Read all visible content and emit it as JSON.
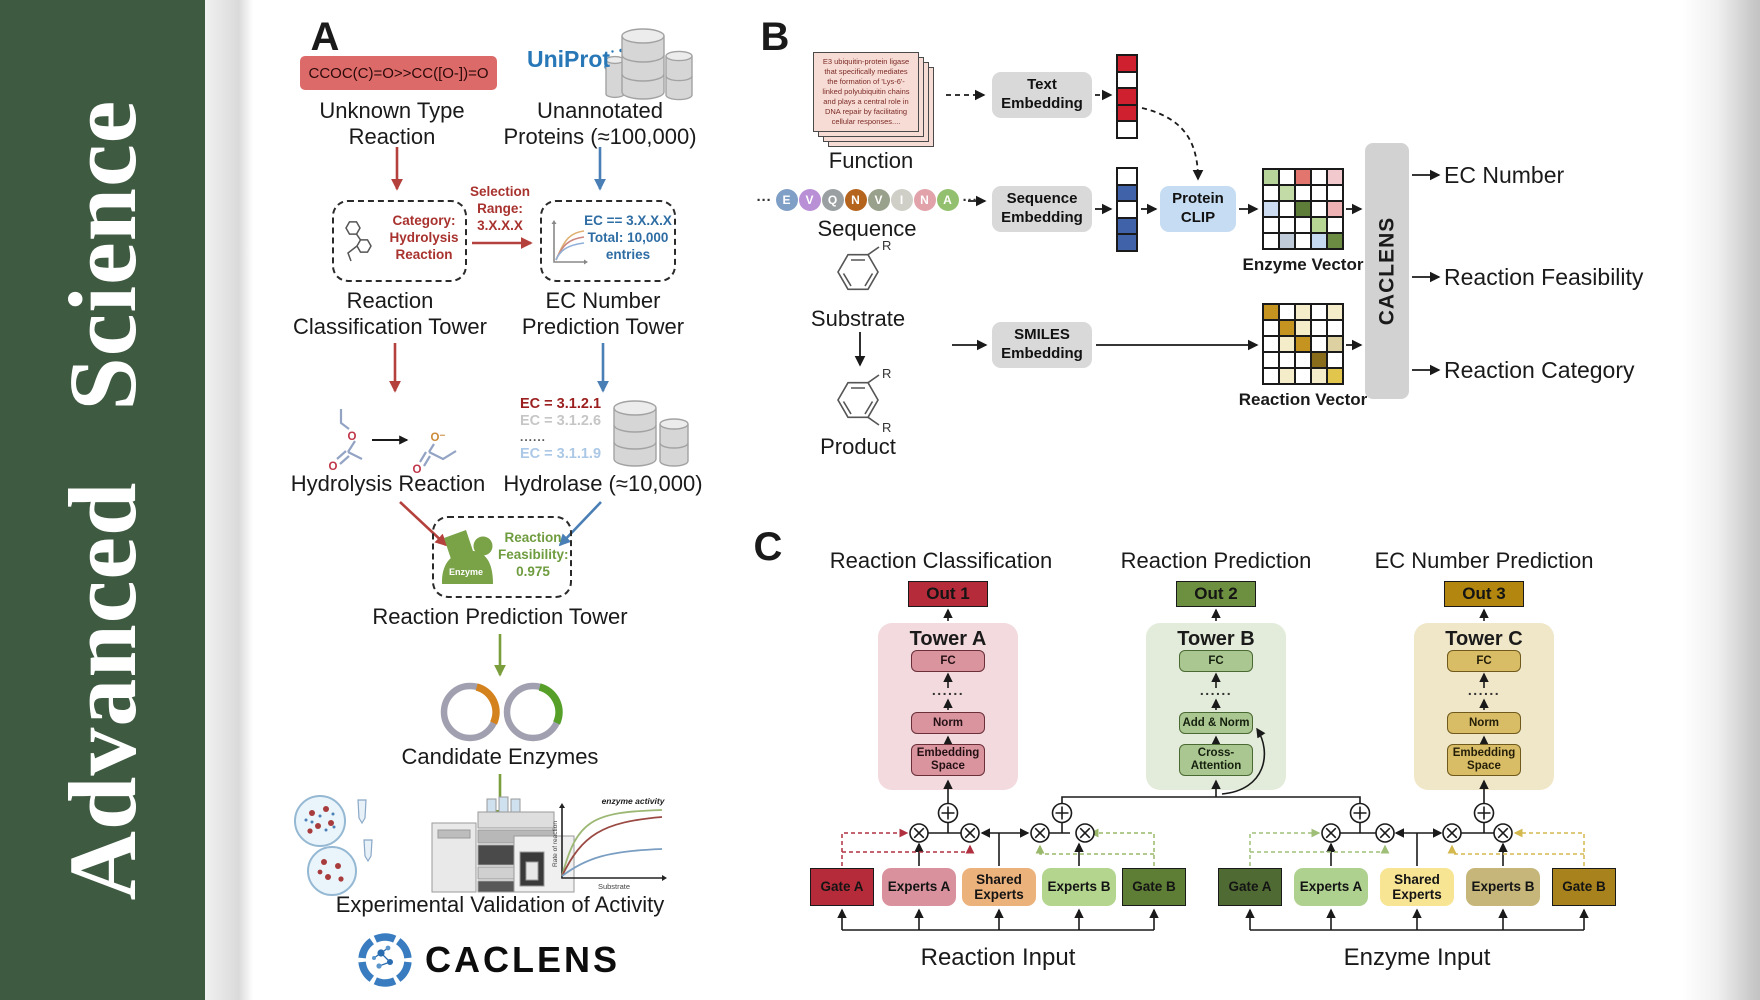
{
  "journal": {
    "name": "Advanced Science"
  },
  "colors": {
    "brand_green": "#3e5a40",
    "accent_red": "#b5413d",
    "accent_blue": "#4a7fb5",
    "accent_green": "#7a9e3c",
    "uniprot_blue": "#2878b8"
  },
  "panel_a": {
    "label": "A",
    "smiles": "CCOC(C)=O>>CC([O-])=O",
    "unknown_reaction_label": "Unknown Type Reaction",
    "uniprot_label": "UniProt",
    "unannotated_label": "Unannotated Proteins (≈100,000)",
    "selection_label": "Selection Range: 3.X.X.X",
    "category_box_label": "Category: Hydrolysis Reaction",
    "ec_box_label": "EC == 3.X.X.X Total: 10,000 entries",
    "classification_tower_label": "Reaction Classification Tower",
    "ec_tower_label": "EC Number Prediction Tower",
    "hydrolysis_label": "Hydrolysis Reaction",
    "hydrolase_label": "Hydrolase (≈10,000)",
    "ec_list": [
      "EC = 3.1.2.1",
      "EC = 3.1.2.6",
      "......",
      "EC = 3.1.1.9"
    ],
    "enzyme_icon_label": "Enzyme",
    "feasibility_label": "Reaction Feasibility: 0.975",
    "prediction_tower_label": "Reaction Prediction Tower",
    "candidate_label": "Candidate Enzymes",
    "validation_label": "Experimental Validation of Activity",
    "wordmark": "CACLENS",
    "molecule": {
      "o": "O",
      "o_minus": "O⁻"
    },
    "graph": {
      "curve_label": "enzyme activity",
      "ylabel": "Rate of reaction",
      "xlabel": "Substrate"
    }
  },
  "panel_b": {
    "label": "B",
    "function_card_text": "E3 ubiquitin-protein ligase that specifically mediates the formation of 'Lys-6'-linked polyubiquitin chains and plays a central role in DNA repair by facilitating cellular responses....",
    "function_label": "Function",
    "sequence_label": "Sequence",
    "ellipsis": "···",
    "residues": [
      {
        "t": "E",
        "c": "#7f9fc6"
      },
      {
        "t": "V",
        "c": "#b98fd6"
      },
      {
        "t": "Q",
        "c": "#9aa0a2"
      },
      {
        "t": "N",
        "c": "#b5641e"
      },
      {
        "t": "V",
        "c": "#99a08b"
      },
      {
        "t": "I",
        "c": "#cfcfc7"
      },
      {
        "t": "N",
        "c": "#e2a2aa"
      },
      {
        "t": "A",
        "c": "#93c06e"
      }
    ],
    "text_embedding_label": "Text Embedding",
    "sequence_embedding_label": "Sequence Embedding",
    "smiles_embedding_label": "SMILES Embedding",
    "protein_clip_label": "Protein CLIP",
    "substrate_label": "Substrate",
    "product_label": "Product",
    "r_group": "R",
    "enzyme_vector_label": "Enzyme Vector",
    "reaction_vector_label": "Reaction Vector",
    "caclens_label": "CACLENS",
    "outputs": [
      "EC Number",
      "Reaction Feasibility",
      "Reaction Category"
    ],
    "text_vector_cells": [
      "#cf2030",
      "#ffffff",
      "#cf2030",
      "#cf2030",
      "#ffffff"
    ],
    "sequence_vector_cells": [
      "#ffffff",
      "#3f62a8",
      "#ffffff",
      "#3f62a8",
      "#3f62a8"
    ],
    "enzyme_vector_cells": [
      "#b7d49a",
      "#ffffff",
      "#e2766f",
      "#ffffff",
      "#f2c9cd",
      "#ffffff",
      "#c3dba6",
      "#ffffff",
      "#ffffff",
      "#ffffff",
      "#cddcf0",
      "#ffffff",
      "#5d7d39",
      "#ffffff",
      "#efb2b4",
      "#ffffff",
      "#ffffff",
      "#ffffff",
      "#b6d693",
      "#ffffff",
      "#ffffff",
      "#bfcbd9",
      "#ffffff",
      "#c6daf2",
      "#6c8b43"
    ],
    "reaction_vector_cells": [
      "#c49320",
      "#ffffff",
      "#f5edca",
      "#ffffff",
      "#f5edca",
      "#ffffff",
      "#c49320",
      "#f5edca",
      "#ffffff",
      "#ffffff",
      "#ffffff",
      "#f5edca",
      "#c49320",
      "#ffffff",
      "#ddd1a1",
      "#ffffff",
      "#ffffff",
      "#ffffff",
      "#896c1b",
      "#ffffff",
      "#ffffff",
      "#f5edca",
      "#ffffff",
      "#f5edca",
      "#e2c54d"
    ]
  },
  "panel_c": {
    "label": "C",
    "columns": [
      {
        "header": "Reaction Classification",
        "out": "Out 1",
        "tower": "Tower A",
        "layers": [
          "FC",
          "......",
          "Norm",
          "Embedding Space"
        ]
      },
      {
        "header": "Reaction Prediction",
        "out": "Out 2",
        "tower": "Tower B",
        "layers": [
          "FC",
          "......",
          "Add & Norm",
          "Cross-Attention"
        ]
      },
      {
        "header": "EC Number Prediction",
        "out": "Out 3",
        "tower": "Tower C",
        "layers": [
          "FC",
          "......",
          "Norm",
          "Embedding Space"
        ]
      }
    ],
    "moe_left": {
      "gate_a": "Gate A",
      "experts_a": "Experts A",
      "shared": "Shared Experts",
      "experts_b": "Experts B",
      "gate_b": "Gate B",
      "input_label": "Reaction Input"
    },
    "moe_right": {
      "gate_a": "Gate A",
      "experts_a": "Experts A",
      "shared": "Shared Experts",
      "experts_b": "Experts B",
      "gate_b": "Gate B",
      "input_label": "Enzyme Input"
    }
  }
}
